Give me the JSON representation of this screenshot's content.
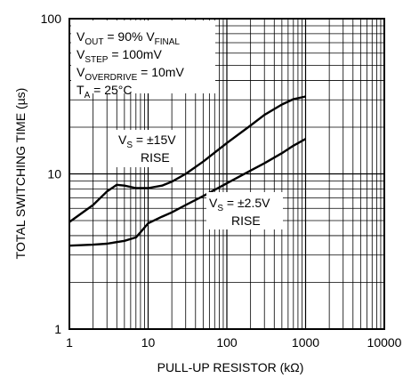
{
  "chart_data": {
    "type": "line",
    "title": "",
    "xlabel": "PULL-UP RESISTOR (kΩ)",
    "ylabel": "TOTAL SWITCHING TIME (µs)",
    "x_scale": "log",
    "y_scale": "log",
    "xlim": [
      1,
      10000
    ],
    "ylim": [
      1,
      100
    ],
    "x_ticks": [
      "1",
      "10",
      "100",
      "1000",
      "10000"
    ],
    "y_ticks": [
      "1",
      "10",
      "100"
    ],
    "grid": true,
    "conditions": [
      {
        "base": "V",
        "sub": "OUT",
        "rest": " = 90% V",
        "sub2": "FINAL"
      },
      {
        "base": "V",
        "sub": "STEP",
        "rest": " = 100mV",
        "sub2": ""
      },
      {
        "base": "V",
        "sub": "OVERDRIVE",
        "rest": " = 10mV",
        "sub2": ""
      },
      {
        "base": "T",
        "sub": "A",
        "rest": " = 25°C",
        "sub2": ""
      }
    ],
    "series": [
      {
        "label_line1_base": "V",
        "label_line1_sub": "S",
        "label_line1_rest": " = ±15V",
        "label_line2": "RISE",
        "x": [
          1,
          2,
          3,
          4,
          5,
          7,
          10,
          15,
          20,
          30,
          50,
          100,
          200,
          300,
          500,
          700,
          1000
        ],
        "y": [
          4.9,
          6.3,
          7.7,
          8.5,
          8.4,
          8.1,
          8.1,
          8.4,
          8.9,
          10.0,
          12.0,
          15.8,
          20.5,
          24.0,
          28.0,
          30.3,
          31.5
        ]
      },
      {
        "label_line1_base": "V",
        "label_line1_sub": "S",
        "label_line1_rest": " = ±2.5V",
        "label_line2": "RISE",
        "x": [
          1,
          2,
          3,
          5,
          7,
          8,
          10,
          15,
          20,
          30,
          50,
          100,
          200,
          300,
          500,
          700,
          1000
        ],
        "y": [
          3.45,
          3.5,
          3.55,
          3.7,
          3.9,
          4.2,
          4.8,
          5.3,
          5.65,
          6.3,
          7.2,
          8.7,
          10.5,
          11.7,
          13.6,
          15.2,
          16.8
        ]
      }
    ]
  }
}
